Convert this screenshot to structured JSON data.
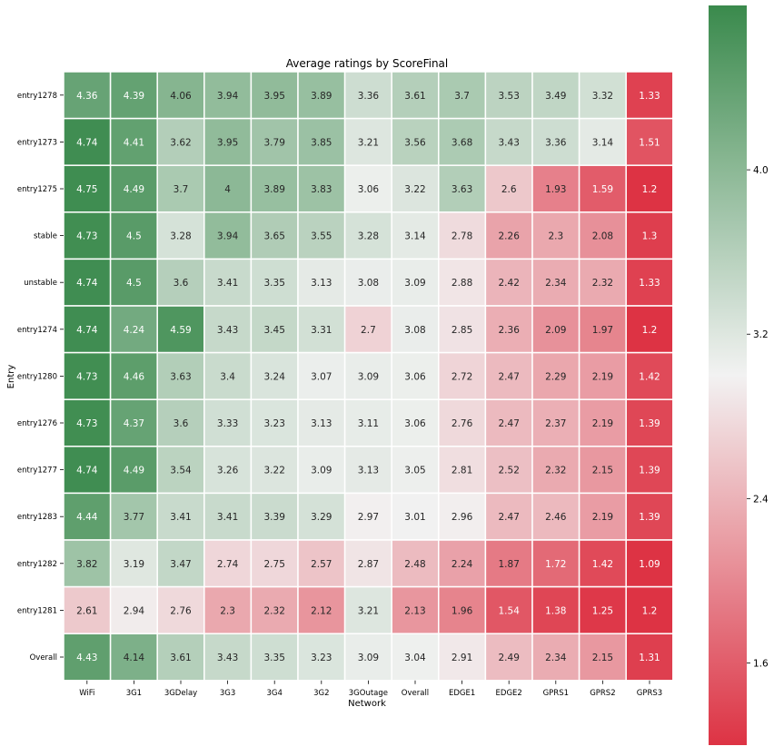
{
  "chart_data": {
    "type": "heatmap",
    "title": "Average ratings by ScoreFinal",
    "xlabel": "Network",
    "ylabel": "Entry",
    "columns": [
      "WiFi",
      "3G1",
      "3GDelay",
      "3G3",
      "3G4",
      "3G2",
      "3GOutage",
      "Overall",
      "EDGE1",
      "EDGE2",
      "GPRS1",
      "GPRS2",
      "GPRS3"
    ],
    "rows": [
      "entry1278",
      "entry1273",
      "entry1275",
      "stable",
      "unstable",
      "entry1274",
      "entry1280",
      "entry1276",
      "entry1277",
      "entry1283",
      "entry1282",
      "entry1281",
      "Overall"
    ],
    "values": [
      [
        4.36,
        4.39,
        4.06,
        3.94,
        3.95,
        3.89,
        3.36,
        3.61,
        3.7,
        3.53,
        3.49,
        3.32,
        1.33
      ],
      [
        4.74,
        4.41,
        3.62,
        3.95,
        3.79,
        3.85,
        3.21,
        3.56,
        3.68,
        3.43,
        3.36,
        3.14,
        1.51
      ],
      [
        4.75,
        4.49,
        3.7,
        4,
        3.89,
        3.83,
        3.06,
        3.22,
        3.63,
        2.6,
        1.93,
        1.59,
        1.2
      ],
      [
        4.73,
        4.5,
        3.28,
        3.94,
        3.65,
        3.55,
        3.28,
        3.14,
        2.78,
        2.26,
        2.3,
        2.08,
        1.3
      ],
      [
        4.74,
        4.5,
        3.6,
        3.41,
        3.35,
        3.13,
        3.08,
        3.09,
        2.88,
        2.42,
        2.34,
        2.32,
        1.33
      ],
      [
        4.74,
        4.24,
        4.59,
        3.43,
        3.45,
        3.31,
        2.7,
        3.08,
        2.85,
        2.36,
        2.09,
        1.97,
        1.2
      ],
      [
        4.73,
        4.46,
        3.63,
        3.4,
        3.24,
        3.07,
        3.09,
        3.06,
        2.72,
        2.47,
        2.29,
        2.19,
        1.42
      ],
      [
        4.73,
        4.37,
        3.6,
        3.33,
        3.23,
        3.13,
        3.11,
        3.06,
        2.76,
        2.47,
        2.37,
        2.19,
        1.39
      ],
      [
        4.74,
        4.49,
        3.54,
        3.26,
        3.22,
        3.09,
        3.13,
        3.05,
        2.81,
        2.52,
        2.32,
        2.15,
        1.39
      ],
      [
        4.44,
        3.77,
        3.41,
        3.41,
        3.39,
        3.29,
        2.97,
        3.01,
        2.96,
        2.47,
        2.46,
        2.19,
        1.39
      ],
      [
        3.82,
        3.19,
        3.47,
        2.74,
        2.75,
        2.57,
        2.87,
        2.48,
        2.24,
        1.87,
        1.72,
        1.42,
        1.09
      ],
      [
        2.61,
        2.94,
        2.76,
        2.3,
        2.32,
        2.12,
        3.21,
        2.13,
        1.96,
        1.54,
        1.38,
        1.25,
        1.2
      ],
      [
        4.43,
        4.14,
        3.61,
        3.43,
        3.35,
        3.23,
        3.09,
        3.04,
        2.91,
        2.49,
        2.34,
        2.15,
        1.31
      ]
    ],
    "color_range": [
      1.2,
      4.8
    ],
    "colormap": {
      "low": "#dd3344",
      "mid": "#f2f2f2",
      "high": "#3a8a4c"
    },
    "colorbar_ticks": [
      "4.0",
      "3.2",
      "2.4",
      "1.6"
    ]
  }
}
